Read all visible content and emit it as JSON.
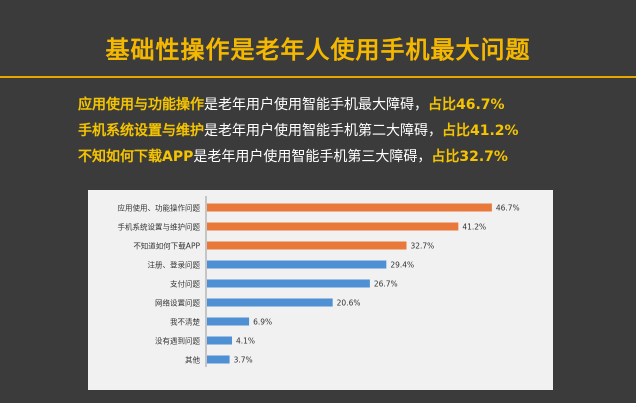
{
  "header": {
    "title": "基础性操作是老年人使用手机最大问题"
  },
  "highlights": [
    {
      "key": "应用使用与功能操作",
      "text": "是老年用户使用智能手机最大障碍，",
      "pct": "占比46.7%"
    },
    {
      "key": "手机系统设置与维护",
      "text": "是老年用户使用智能手机第二大障碍，",
      "pct": "占比41.2%"
    },
    {
      "key": "不知如何下载APP",
      "text": "是老年用户使用智能手机第三大障碍，",
      "pct": "占比32.7%"
    }
  ],
  "chart_data": {
    "type": "bar",
    "orientation": "horizontal",
    "title": "",
    "xlabel": "",
    "ylabel": "",
    "xlim": [
      0,
      50
    ],
    "grid": false,
    "legend": "none",
    "categories": [
      "应用使用、功能操作问题",
      "手机系统设置与维护问题",
      "不知道如何下载APP",
      "注册、登录问题",
      "支付问题",
      "网络设置问题",
      "我不清楚",
      "没有遇到问题",
      "其他"
    ],
    "values": [
      46.7,
      41.2,
      32.7,
      29.4,
      26.7,
      20.6,
      6.9,
      4.1,
      3.7
    ],
    "value_labels": [
      "46.7%",
      "41.2%",
      "32.7%",
      "29.4%",
      "26.7%",
      "20.6%",
      "6.9%",
      "4.1%",
      "3.7%"
    ],
    "bar_colors": [
      "#e8793a",
      "#e8793a",
      "#e8793a",
      "#4f8fd4",
      "#4f8fd4",
      "#4f8fd4",
      "#4f8fd4",
      "#4f8fd4",
      "#4f8fd4"
    ]
  }
}
